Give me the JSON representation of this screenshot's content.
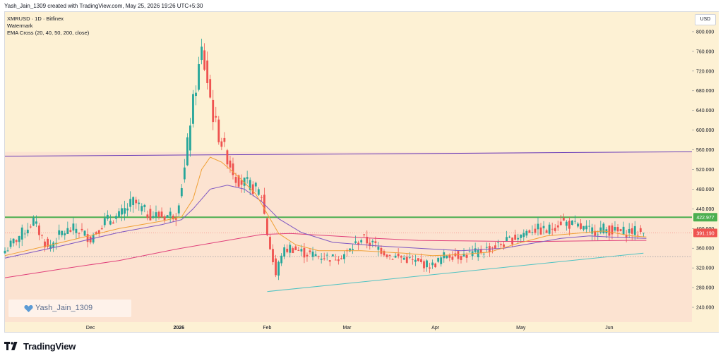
{
  "header": {
    "attribution": "Yash_Jain_1309 created with TradingView.com, May 25, 2026 19:26 UTC+5:30"
  },
  "legend": {
    "symbol": "XMRUSD · 1D · Bitfinex",
    "watermark_label": "Watermark",
    "indicator": "EMA Cross (20, 40, 50, 200, close)"
  },
  "currency": "USD",
  "watermark": {
    "text": "Yash_Jain_1309",
    "icon": "heart-icon",
    "icon_color": "#5b9bd5"
  },
  "footer": {
    "brand": "TradingView",
    "logo": "tradingview-logo-icon"
  },
  "colors": {
    "zone_upper": "#fdf1d4",
    "zone_lower": "#fce3d1",
    "candle_up": "#26a69a",
    "candle_down": "#ef5350",
    "ema_fast": "#f0a035",
    "ema_slow": "#7e57c2",
    "ema_long": "#e0407a",
    "support_level": "#4caf50",
    "trendline_top": "#673ab7",
    "trendline_bottom": "#4fc3c3",
    "last_price_bg": "#ef5350",
    "level_bg": "#4caf50"
  },
  "chart_data": {
    "type": "candlestick",
    "symbol": "XMRUSD",
    "timeframe": "1D",
    "exchange": "Bitfinex",
    "y_axis": {
      "ticks": [
        "240.000",
        "280.000",
        "320.000",
        "360.000",
        "400.000",
        "440.000",
        "480.000",
        "520.000",
        "560.000",
        "600.000",
        "640.000",
        "680.000",
        "720.000",
        "760.000",
        "800.000"
      ],
      "range": [
        210,
        840
      ]
    },
    "x_axis": {
      "ticks": [
        {
          "label": "Dec",
          "day": 30
        },
        {
          "label": "2026",
          "day": 61
        },
        {
          "label": "Feb",
          "day": 92
        },
        {
          "label": "Mar",
          "day": 120
        },
        {
          "label": "Apr",
          "day": 151
        },
        {
          "label": "May",
          "day": 181
        },
        {
          "label": "Jun",
          "day": 212
        }
      ],
      "day_range": [
        0,
        241
      ]
    },
    "price_labels": {
      "horizontal_level": "422.977",
      "last_price": "391.190",
      "horizontal_level_value": 422.977,
      "last_price_value": 391.19
    },
    "zones": [
      {
        "from": 556,
        "to": 840
      },
      {
        "from": 210,
        "to": 556
      }
    ],
    "trendlines": [
      {
        "name": "resistance",
        "points": [
          [
            0,
            547
          ],
          [
            241,
            556
          ]
        ]
      },
      {
        "name": "support",
        "points": [
          [
            92,
            272
          ],
          [
            224,
            350
          ]
        ]
      }
    ],
    "dotted_level": 343,
    "candles_anchor_days": [
      0,
      5,
      10,
      15,
      20,
      25,
      30,
      35,
      40,
      45,
      50,
      55,
      60,
      63,
      65,
      67,
      69,
      71,
      73,
      75,
      77,
      79,
      81,
      83,
      85,
      88,
      90,
      92,
      95,
      97,
      100,
      105,
      110,
      115,
      120,
      125,
      130,
      135,
      140,
      145,
      150,
      155,
      160,
      165,
      170,
      175,
      180,
      185,
      190,
      195,
      200,
      205,
      210,
      215,
      220,
      224
    ],
    "candles_anchor_close": [
      355,
      385,
      415,
      360,
      392,
      400,
      380,
      415,
      425,
      455,
      430,
      425,
      430,
      520,
      620,
      690,
      760,
      700,
      630,
      590,
      560,
      530,
      505,
      495,
      490,
      480,
      468,
      390,
      305,
      350,
      362,
      350,
      345,
      340,
      350,
      380,
      365,
      345,
      340,
      330,
      325,
      348,
      345,
      350,
      360,
      370,
      385,
      400,
      395,
      415,
      405,
      395,
      400,
      392,
      395,
      391.19
    ],
    "ema_fast_points": [
      [
        0,
        345
      ],
      [
        20,
        372
      ],
      [
        40,
        400
      ],
      [
        55,
        415
      ],
      [
        62,
        424
      ],
      [
        66,
        460
      ],
      [
        69,
        520
      ],
      [
        72,
        545
      ],
      [
        76,
        535
      ],
      [
        82,
        505
      ],
      [
        88,
        470
      ],
      [
        92,
        430
      ],
      [
        96,
        390
      ],
      [
        102,
        367
      ],
      [
        110,
        355
      ],
      [
        125,
        355
      ],
      [
        140,
        350
      ],
      [
        150,
        345
      ],
      [
        160,
        347
      ],
      [
        170,
        352
      ],
      [
        180,
        370
      ],
      [
        190,
        385
      ],
      [
        200,
        390
      ],
      [
        210,
        395
      ],
      [
        220,
        385
      ],
      [
        225,
        383
      ]
    ],
    "ema_slow_points": [
      [
        0,
        340
      ],
      [
        20,
        365
      ],
      [
        40,
        392
      ],
      [
        55,
        408
      ],
      [
        62,
        418
      ],
      [
        66,
        440
      ],
      [
        72,
        480
      ],
      [
        78,
        488
      ],
      [
        84,
        480
      ],
      [
        90,
        455
      ],
      [
        96,
        420
      ],
      [
        104,
        392
      ],
      [
        115,
        372
      ],
      [
        130,
        365
      ],
      [
        145,
        360
      ],
      [
        160,
        355
      ],
      [
        175,
        360
      ],
      [
        185,
        370
      ],
      [
        195,
        380
      ],
      [
        205,
        385
      ],
      [
        215,
        382
      ],
      [
        225,
        380
      ]
    ],
    "ema_long_points": [
      [
        0,
        300
      ],
      [
        20,
        318
      ],
      [
        40,
        335
      ],
      [
        60,
        358
      ],
      [
        80,
        378
      ],
      [
        90,
        388
      ],
      [
        100,
        390
      ],
      [
        115,
        385
      ],
      [
        130,
        380
      ],
      [
        145,
        376
      ],
      [
        160,
        375
      ],
      [
        175,
        374
      ],
      [
        190,
        374
      ],
      [
        205,
        375
      ],
      [
        220,
        376
      ],
      [
        225,
        376
      ]
    ]
  }
}
